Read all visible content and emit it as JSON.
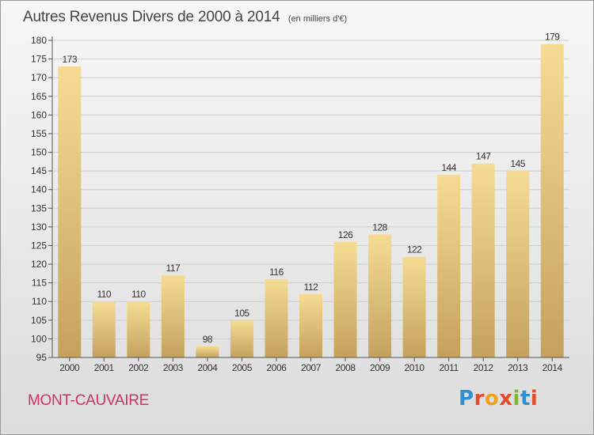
{
  "header": {
    "title": "Autres Revenus Divers de 2000 à 2014",
    "subtitle": "(en milliers d'€)"
  },
  "footer": {
    "place": "MONT-CAUVAIRE",
    "logo_text": "Proxiti",
    "logo_colors": [
      "#2f8fd0",
      "#e34b2a",
      "#f2a11a",
      "#e34b2a",
      "#7cb832",
      "#2f8fd0",
      "#e34b2a"
    ]
  },
  "chart_data": {
    "type": "bar",
    "title": "Autres Revenus Divers de 2000 à 2014",
    "subtitle": "(en milliers d'€)",
    "categories": [
      "2000",
      "2001",
      "2002",
      "2003",
      "2004",
      "2005",
      "2006",
      "2007",
      "2008",
      "2009",
      "2010",
      "2011",
      "2012",
      "2013",
      "2014"
    ],
    "values": [
      173,
      110,
      110,
      117,
      98,
      105,
      116,
      112,
      126,
      128,
      122,
      144,
      147,
      145,
      179
    ],
    "ylim": [
      95,
      180
    ],
    "yticks": [
      95,
      100,
      105,
      110,
      115,
      120,
      125,
      130,
      135,
      140,
      145,
      150,
      155,
      160,
      165,
      170,
      175,
      180
    ],
    "grid": true,
    "bar_color_light": "#f6dc93",
    "bar_color_dark": "#c4a25e",
    "grid_color": "#cfcfcf"
  }
}
